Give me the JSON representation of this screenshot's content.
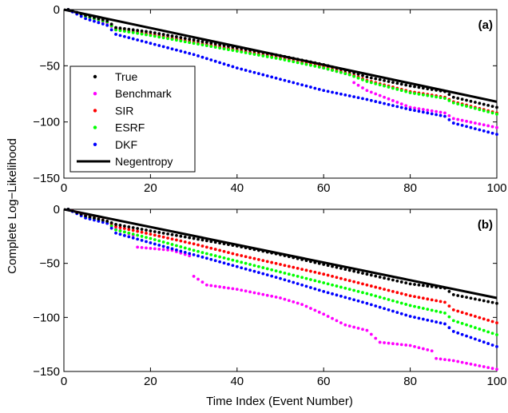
{
  "figure": {
    "ylabel": "Complete Log−Likelihood",
    "xlabel": "Time Index (Event Number)"
  },
  "chart_data": [
    {
      "type": "scatter",
      "panel_label": "(a)",
      "xlim": [
        0,
        100
      ],
      "ylim": [
        -150,
        0
      ],
      "xticks": [
        0,
        20,
        40,
        60,
        80,
        100
      ],
      "yticks": [
        0,
        -50,
        -100,
        -150
      ],
      "ytick_labels": [
        "0",
        "−50",
        "−100",
        "−150"
      ],
      "grid": false,
      "legend_position": "lower-left",
      "series": [
        {
          "name": "True",
          "color": "#000000",
          "marker": "dot",
          "points": [
            [
              1,
              0
            ],
            [
              5,
              -5
            ],
            [
              10,
              -10
            ],
            [
              12,
              -16
            ],
            [
              20,
              -20
            ],
            [
              30,
              -27
            ],
            [
              40,
              -34
            ],
            [
              50,
              -41
            ],
            [
              60,
              -49
            ],
            [
              66,
              -55
            ],
            [
              70,
              -60
            ],
            [
              80,
              -68
            ],
            [
              88,
              -73
            ],
            [
              90,
              -78
            ],
            [
              100,
              -87
            ]
          ]
        },
        {
          "name": "Benchmark",
          "color": "#ff00ff",
          "marker": "dot",
          "points": [
            [
              1,
              0
            ],
            [
              5,
              -6
            ],
            [
              10,
              -12
            ],
            [
              12,
              -18
            ],
            [
              20,
              -22
            ],
            [
              30,
              -29
            ],
            [
              40,
              -36
            ],
            [
              50,
              -43
            ],
            [
              60,
              -52
            ],
            [
              66,
              -58
            ],
            [
              67,
              -65
            ],
            [
              70,
              -72
            ],
            [
              80,
              -87
            ],
            [
              88,
              -92
            ],
            [
              90,
              -97
            ],
            [
              100,
              -105
            ]
          ]
        },
        {
          "name": "SIR",
          "color": "#ff0000",
          "marker": "dot",
          "points": [
            [
              1,
              0
            ],
            [
              5,
              -6
            ],
            [
              10,
              -11
            ],
            [
              12,
              -17
            ],
            [
              20,
              -22
            ],
            [
              30,
              -29
            ],
            [
              40,
              -36
            ],
            [
              50,
              -43
            ],
            [
              60,
              -51
            ],
            [
              66,
              -57
            ],
            [
              70,
              -63
            ],
            [
              80,
              -73
            ],
            [
              88,
              -78
            ],
            [
              90,
              -82
            ],
            [
              100,
              -92
            ]
          ]
        },
        {
          "name": "ESRF",
          "color": "#00ff00",
          "marker": "dot",
          "points": [
            [
              1,
              0
            ],
            [
              5,
              -6
            ],
            [
              10,
              -11
            ],
            [
              12,
              -18
            ],
            [
              20,
              -23
            ],
            [
              30,
              -30
            ],
            [
              40,
              -37
            ],
            [
              50,
              -44
            ],
            [
              60,
              -52
            ],
            [
              66,
              -58
            ],
            [
              70,
              -64
            ],
            [
              80,
              -74
            ],
            [
              88,
              -79
            ],
            [
              90,
              -83
            ],
            [
              100,
              -93
            ]
          ]
        },
        {
          "name": "DKF",
          "color": "#0000ff",
          "marker": "dot",
          "points": [
            [
              1,
              0
            ],
            [
              5,
              -8
            ],
            [
              10,
              -14
            ],
            [
              12,
              -22
            ],
            [
              20,
              -30
            ],
            [
              30,
              -40
            ],
            [
              40,
              -52
            ],
            [
              50,
              -62
            ],
            [
              60,
              -72
            ],
            [
              70,
              -80
            ],
            [
              80,
              -89
            ],
            [
              88,
              -95
            ],
            [
              90,
              -101
            ],
            [
              100,
              -111
            ]
          ]
        },
        {
          "name": "Negentropy",
          "color": "#000000",
          "marker": "line",
          "points": [
            [
              0,
              0
            ],
            [
              100,
              -82
            ]
          ]
        }
      ]
    },
    {
      "type": "scatter",
      "panel_label": "(b)",
      "xlim": [
        0,
        100
      ],
      "ylim": [
        -150,
        0
      ],
      "xticks": [
        0,
        20,
        40,
        60,
        80,
        100
      ],
      "yticks": [
        0,
        -50,
        -100,
        -150
      ],
      "ytick_labels": [
        "0",
        "−50",
        "−100",
        "−150"
      ],
      "grid": false,
      "series": [
        {
          "name": "True",
          "color": "#000000",
          "marker": "dot",
          "points": [
            [
              1,
              0
            ],
            [
              5,
              -6
            ],
            [
              10,
              -11
            ],
            [
              12,
              -14
            ],
            [
              20,
              -20
            ],
            [
              30,
              -27
            ],
            [
              40,
              -34
            ],
            [
              50,
              -42
            ],
            [
              60,
              -51
            ],
            [
              70,
              -60
            ],
            [
              80,
              -69
            ],
            [
              88,
              -73
            ],
            [
              90,
              -79
            ],
            [
              100,
              -87
            ]
          ]
        },
        {
          "name": "Benchmark",
          "color": "#ff00ff",
          "marker": "dot",
          "points": [
            [
              1,
              0
            ],
            [
              5,
              -6
            ],
            [
              10,
              -12
            ],
            [
              12,
              -18
            ],
            [
              16,
              -24
            ],
            [
              17,
              -35
            ],
            [
              25,
              -38
            ],
            [
              29,
              -43
            ],
            [
              30,
              -62
            ],
            [
              33,
              -70
            ],
            [
              40,
              -74
            ],
            [
              50,
              -82
            ],
            [
              55,
              -88
            ],
            [
              60,
              -97
            ],
            [
              65,
              -107
            ],
            [
              70,
              -112
            ],
            [
              73,
              -123
            ],
            [
              80,
              -126
            ],
            [
              85,
              -131
            ],
            [
              86,
              -138
            ],
            [
              90,
              -140
            ],
            [
              100,
              -148
            ]
          ]
        },
        {
          "name": "SIR",
          "color": "#ff0000",
          "marker": "dot",
          "points": [
            [
              1,
              0
            ],
            [
              5,
              -6
            ],
            [
              10,
              -11
            ],
            [
              12,
              -16
            ],
            [
              20,
              -23
            ],
            [
              30,
              -32
            ],
            [
              40,
              -42
            ],
            [
              50,
              -51
            ],
            [
              60,
              -60
            ],
            [
              70,
              -70
            ],
            [
              80,
              -80
            ],
            [
              88,
              -86
            ],
            [
              90,
              -93
            ],
            [
              100,
              -105
            ]
          ]
        },
        {
          "name": "ESRF",
          "color": "#00ff00",
          "marker": "dot",
          "points": [
            [
              1,
              0
            ],
            [
              5,
              -7
            ],
            [
              10,
              -12
            ],
            [
              12,
              -19
            ],
            [
              20,
              -27
            ],
            [
              30,
              -38
            ],
            [
              40,
              -48
            ],
            [
              50,
              -58
            ],
            [
              60,
              -68
            ],
            [
              70,
              -78
            ],
            [
              80,
              -89
            ],
            [
              88,
              -96
            ],
            [
              90,
              -103
            ],
            [
              100,
              -116
            ]
          ]
        },
        {
          "name": "DKF",
          "color": "#0000ff",
          "marker": "dot",
          "points": [
            [
              1,
              0
            ],
            [
              5,
              -8
            ],
            [
              10,
              -13
            ],
            [
              12,
              -22
            ],
            [
              20,
              -31
            ],
            [
              30,
              -42
            ],
            [
              40,
              -53
            ],
            [
              50,
              -64
            ],
            [
              60,
              -76
            ],
            [
              70,
              -87
            ],
            [
              80,
              -99
            ],
            [
              88,
              -106
            ],
            [
              90,
              -113
            ],
            [
              100,
              -127
            ]
          ]
        },
        {
          "name": "Negentropy",
          "color": "#000000",
          "marker": "line",
          "points": [
            [
              0,
              0
            ],
            [
              100,
              -82
            ]
          ]
        }
      ]
    }
  ]
}
